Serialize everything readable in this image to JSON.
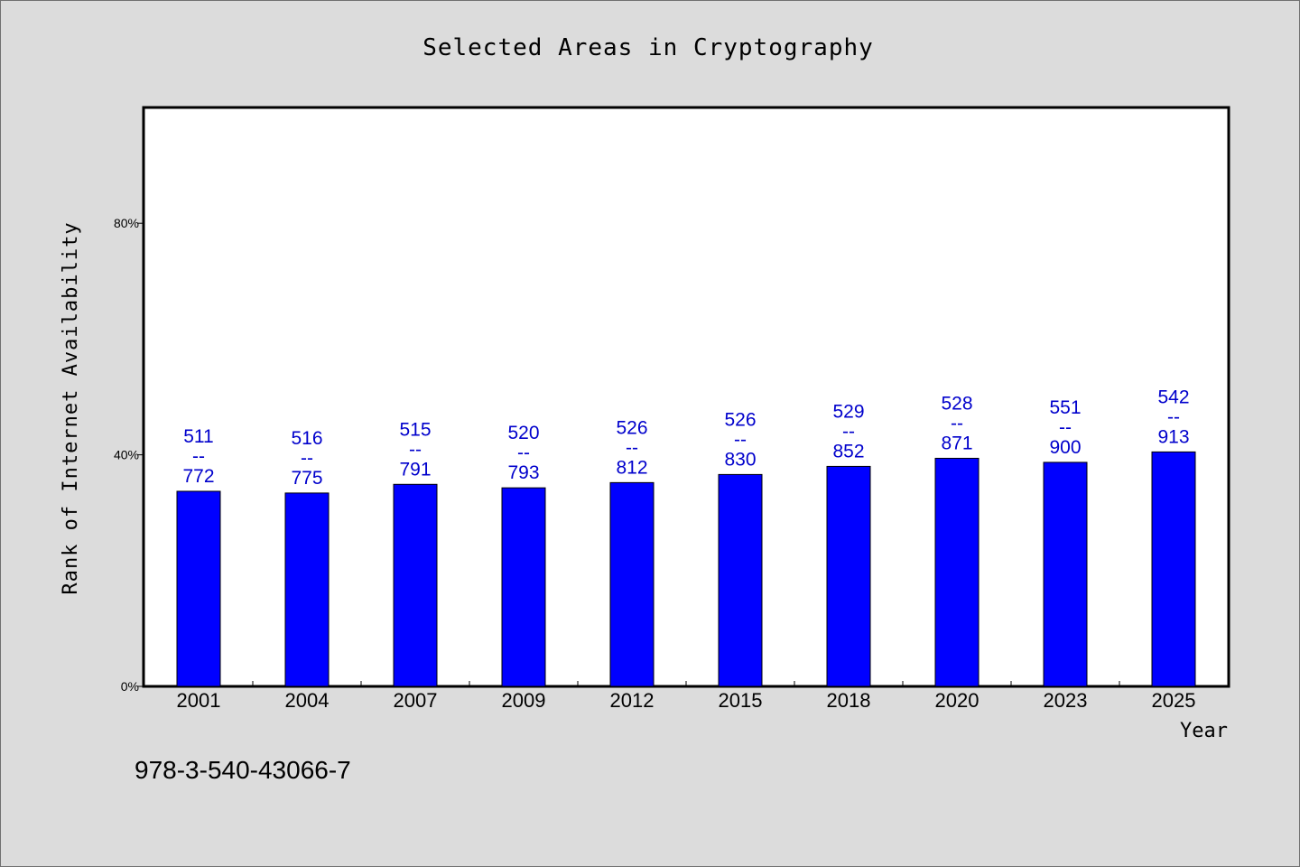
{
  "chart_data": {
    "type": "bar",
    "title": "Selected Areas in Cryptography",
    "xlabel": "Year",
    "ylabel": "Rank of Internet Availability",
    "ylim": [
      0,
      100
    ],
    "yticks": [
      0,
      40,
      80
    ],
    "ytick_labels": [
      "0%",
      "40%",
      "80%"
    ],
    "categories": [
      "2001",
      "2004",
      "2007",
      "2009",
      "2012",
      "2015",
      "2018",
      "2020",
      "2023",
      "2025"
    ],
    "values": [
      33.7,
      33.4,
      34.9,
      34.3,
      35.2,
      36.6,
      38.0,
      39.4,
      38.7,
      40.5
    ],
    "data_labels": [
      [
        "511",
        "--",
        "772"
      ],
      [
        "516",
        "--",
        "775"
      ],
      [
        "515",
        "--",
        "791"
      ],
      [
        "520",
        "--",
        "793"
      ],
      [
        "526",
        "--",
        "812"
      ],
      [
        "526",
        "--",
        "830"
      ],
      [
        "529",
        "--",
        "852"
      ],
      [
        "528",
        "--",
        "871"
      ],
      [
        "551",
        "--",
        "900"
      ],
      [
        "542",
        "--",
        "913"
      ]
    ],
    "bar_color": "#0000ff",
    "label_color": "#0000cc",
    "grid": false,
    "legend": "none"
  },
  "footer": {
    "isbn": "978-3-540-43066-7"
  }
}
